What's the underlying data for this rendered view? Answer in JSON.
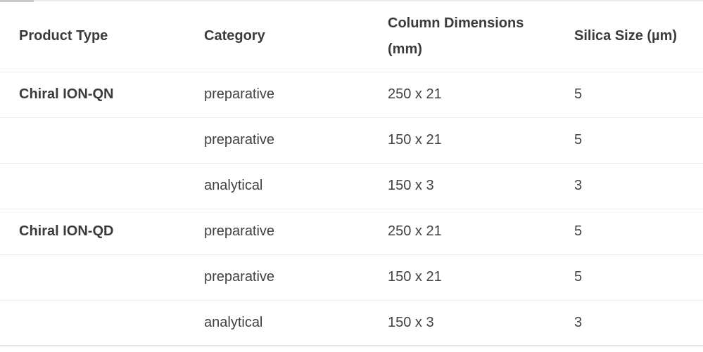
{
  "table": {
    "columns": [
      {
        "line1": "Product Type",
        "line2": ""
      },
      {
        "line1": "Category",
        "line2": ""
      },
      {
        "line1": "Column Dimensions",
        "line2": "(mm)"
      },
      {
        "line1": "Silica Size (µm)",
        "line2": ""
      }
    ],
    "rows": [
      {
        "product_type": "Chiral ION-QN",
        "category": "preparative",
        "dimensions": "250 x 21",
        "silica_size": "5"
      },
      {
        "product_type": "",
        "category": "preparative",
        "dimensions": "150 x 21",
        "silica_size": "5"
      },
      {
        "product_type": "",
        "category": "analytical",
        "dimensions": "150 x 3",
        "silica_size": "3"
      },
      {
        "product_type": "Chiral ION-QD",
        "category": "preparative",
        "dimensions": "250 x 21",
        "silica_size": "5"
      },
      {
        "product_type": "",
        "category": "preparative",
        "dimensions": "150 x 21",
        "silica_size": "5"
      },
      {
        "product_type": "",
        "category": "analytical",
        "dimensions": "150 x 3",
        "silica_size": "3"
      }
    ],
    "colors": {
      "header_text": "#3b3b3b",
      "body_text": "#414141",
      "row_separator": "#ececec",
      "table_top_border": "#e9e9e9",
      "table_bottom_border": "#e4e4e4",
      "top_accent": "#c9c9c9",
      "background": "#ffffff"
    }
  }
}
